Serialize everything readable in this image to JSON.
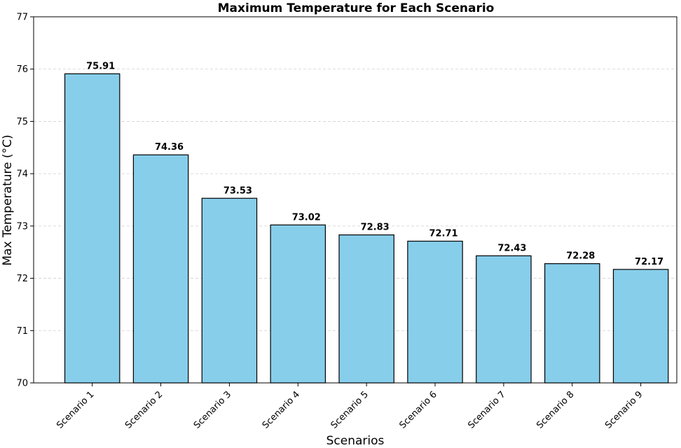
{
  "chart_data": {
    "type": "bar",
    "title": "Maximum Temperature for Each Scenario",
    "xlabel": "Scenarios",
    "ylabel": "Max Temperature (°C)",
    "categories": [
      "Scenario 1",
      "Scenario 2",
      "Scenario 3",
      "Scenario 4",
      "Scenario 5",
      "Scenario 6",
      "Scenario 7",
      "Scenario 8",
      "Scenario 9"
    ],
    "values": [
      75.91,
      74.36,
      73.53,
      73.02,
      72.83,
      72.71,
      72.43,
      72.28,
      72.17
    ],
    "value_labels": [
      "75.91",
      "74.36",
      "73.53",
      "73.02",
      "72.83",
      "72.71",
      "72.43",
      "72.28",
      "72.17"
    ],
    "ylim": [
      70,
      77
    ],
    "yticks": [
      "70",
      "71",
      "72",
      "73",
      "74",
      "75",
      "76",
      "77"
    ],
    "grid": "y-dashed",
    "colors": {
      "bar_fill": "#87ceeb",
      "bar_edge": "#000000",
      "grid": "#cfcfcf"
    }
  }
}
